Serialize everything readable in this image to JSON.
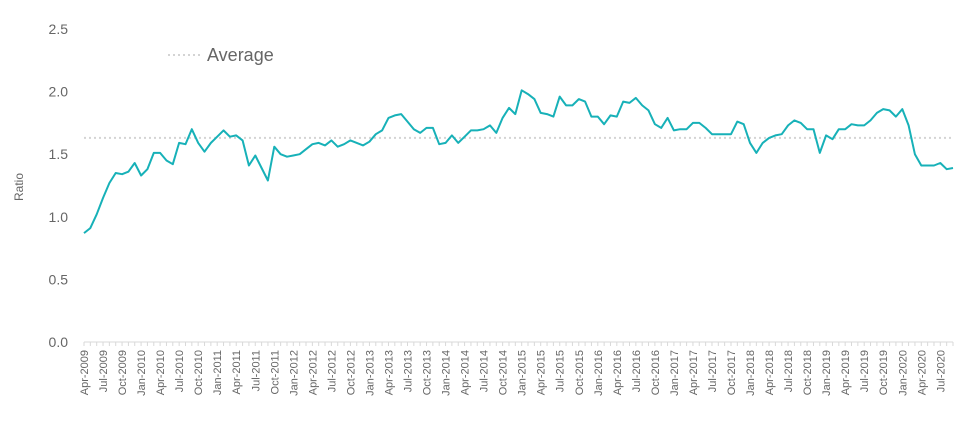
{
  "chart_data": {
    "type": "line",
    "title": "",
    "xlabel": "",
    "ylabel": "Ratio",
    "ylim": [
      0,
      2.5
    ],
    "yticks": [
      "0.0",
      "0.5",
      "1.0",
      "1.5",
      "2.0",
      "2.5"
    ],
    "grid": false,
    "legend_position": "top-left",
    "x_start": "Apr-2009",
    "x_end": "Oct-2020",
    "x_ticks": [
      "Apr-2009",
      "Jul-2009",
      "Oct-2009",
      "Jan-2010",
      "Apr-2010",
      "Jul-2010",
      "Oct-2010",
      "Jan-2011",
      "Apr-2011",
      "Jul-2011",
      "Oct-2011",
      "Jan-2012",
      "Apr-2012",
      "Jul-2012",
      "Oct-2012",
      "Jan-2013",
      "Apr-2013",
      "Jul-2013",
      "Oct-2013",
      "Jan-2014",
      "Apr-2014",
      "Jul-2014",
      "Oct-2014",
      "Jan-2015",
      "Apr-2015",
      "Jul-2015",
      "Oct-2015",
      "Jan-2016",
      "Apr-2016",
      "Jul-2016",
      "Oct-2016",
      "Jan-2017",
      "Apr-2017",
      "Jul-2017",
      "Oct-2017",
      "Jan-2018",
      "Apr-2018",
      "Jul-2018",
      "Oct-2018",
      "Jan-2019",
      "Apr-2019",
      "Jul-2019",
      "Oct-2019",
      "Jan-2020",
      "Apr-2020",
      "Jul-2020"
    ],
    "series": [
      {
        "color": "#17b1b8",
        "style": "solid",
        "values": [
          0.87,
          0.91,
          1.02,
          1.15,
          1.27,
          1.35,
          1.34,
          1.36,
          1.43,
          1.33,
          1.38,
          1.51,
          1.51,
          1.45,
          1.42,
          1.59,
          1.58,
          1.7,
          1.59,
          1.52,
          1.59,
          1.64,
          1.69,
          1.64,
          1.65,
          1.61,
          1.41,
          1.49,
          1.39,
          1.29,
          1.56,
          1.5,
          1.48,
          1.49,
          1.5,
          1.54,
          1.58,
          1.59,
          1.57,
          1.61,
          1.56,
          1.58,
          1.61,
          1.59,
          1.57,
          1.6,
          1.66,
          1.69,
          1.79,
          1.81,
          1.82,
          1.76,
          1.7,
          1.67,
          1.71,
          1.71,
          1.58,
          1.59,
          1.65,
          1.59,
          1.64,
          1.69,
          1.69,
          1.7,
          1.73,
          1.67,
          1.79,
          1.87,
          1.82,
          2.01,
          1.98,
          1.94,
          1.83,
          1.82,
          1.8,
          1.96,
          1.89,
          1.89,
          1.94,
          1.92,
          1.8,
          1.8,
          1.74,
          1.81,
          1.8,
          1.92,
          1.91,
          1.95,
          1.89,
          1.85,
          1.74,
          1.71,
          1.79,
          1.69,
          1.7,
          1.7,
          1.75,
          1.75,
          1.71,
          1.66,
          1.66,
          1.66,
          1.66,
          1.76,
          1.74,
          1.59,
          1.51,
          1.59,
          1.63,
          1.65,
          1.66,
          1.73,
          1.77,
          1.75,
          1.7,
          1.7,
          1.51,
          1.65,
          1.62,
          1.7,
          1.7,
          1.74,
          1.73,
          1.73,
          1.77,
          1.83,
          1.86,
          1.85,
          1.8,
          1.86,
          1.73,
          1.5,
          1.41,
          1.41,
          1.41,
          1.43,
          1.38,
          1.39
        ]
      },
      {
        "name": "Average",
        "color": "#d4d4d4",
        "style": "dotted",
        "values": [
          1.63
        ]
      }
    ]
  }
}
